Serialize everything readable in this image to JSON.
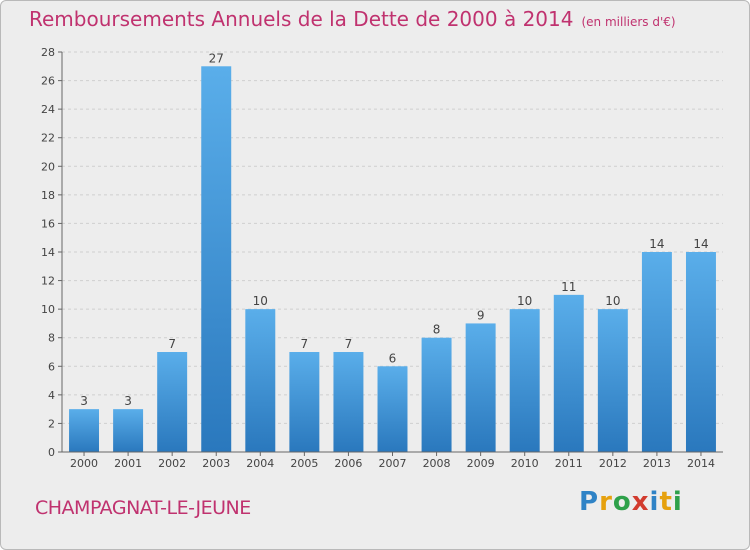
{
  "title": "Remboursements Annuels de la Dette de 2000 à 2014",
  "subtitle": "(en milliers d'€)",
  "commune": "CHAMPAGNAT-LE-JEUNE",
  "logo": {
    "letters": [
      "P",
      "r",
      "o",
      "x",
      "i",
      "t",
      "i"
    ],
    "colors": [
      "#2f83c6",
      "#e6a10e",
      "#2ea14a",
      "#d23b2e",
      "#2f83c6",
      "#e6a10e",
      "#2ea14a"
    ]
  },
  "chart_data": {
    "type": "bar",
    "categories": [
      "2000",
      "2001",
      "2002",
      "2003",
      "2004",
      "2005",
      "2006",
      "2007",
      "2008",
      "2009",
      "2010",
      "2011",
      "2012",
      "2013",
      "2014"
    ],
    "values": [
      3,
      3,
      7,
      27,
      10,
      7,
      7,
      6,
      8,
      9,
      10,
      11,
      10,
      14,
      14
    ],
    "ylim": [
      0,
      28
    ],
    "yticks": [
      0,
      2,
      4,
      6,
      8,
      10,
      12,
      14,
      16,
      18,
      20,
      22,
      24,
      26,
      28
    ],
    "grid": true,
    "bar_color": "#3b8fd8"
  }
}
